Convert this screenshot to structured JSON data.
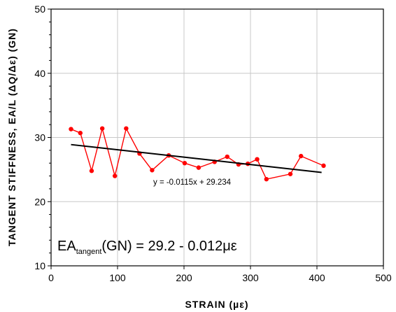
{
  "chart_data": {
    "type": "scatter",
    "xlabel": "STRAIN (µε)",
    "ylabel": "TANGENT STIFFNESS, EA/L (ΔQ/Δε) (GN)",
    "xlim": [
      0,
      500
    ],
    "ylim": [
      10,
      50
    ],
    "x_ticks": [
      "0",
      "100",
      "200",
      "300",
      "400",
      "500"
    ],
    "y_ticks": [
      "10",
      "20",
      "30",
      "40",
      "50"
    ],
    "grid": true,
    "series": [
      {
        "style": "line-markers",
        "color": "#ff0000",
        "points": [
          {
            "x": 30,
            "y": 31.3
          },
          {
            "x": 44,
            "y": 30.7
          },
          {
            "x": 61,
            "y": 24.8
          },
          {
            "x": 77,
            "y": 31.4
          },
          {
            "x": 96,
            "y": 24.0
          },
          {
            "x": 113,
            "y": 31.4
          },
          {
            "x": 133,
            "y": 27.5
          },
          {
            "x": 152,
            "y": 24.9
          },
          {
            "x": 177,
            "y": 27.2
          },
          {
            "x": 201,
            "y": 26.0
          },
          {
            "x": 222,
            "y": 25.3
          },
          {
            "x": 246,
            "y": 26.2
          },
          {
            "x": 265,
            "y": 27.0
          },
          {
            "x": 282,
            "y": 25.8
          },
          {
            "x": 296,
            "y": 25.9
          },
          {
            "x": 310,
            "y": 26.6
          },
          {
            "x": 324,
            "y": 23.5
          },
          {
            "x": 360,
            "y": 24.3
          },
          {
            "x": 376,
            "y": 27.1
          },
          {
            "x": 410,
            "y": 25.6
          }
        ]
      },
      {
        "style": "trendline",
        "color": "#000000",
        "x_range": [
          30,
          407
        ],
        "slope": -0.0115,
        "intercept": 29.234
      }
    ],
    "annotations": {
      "trend_equation": "y = -0.0115x + 29.234",
      "formula_main": "EA",
      "formula_sub": "tangent",
      "formula_rest": "(GN)  = 29.2 - 0.012με"
    }
  }
}
